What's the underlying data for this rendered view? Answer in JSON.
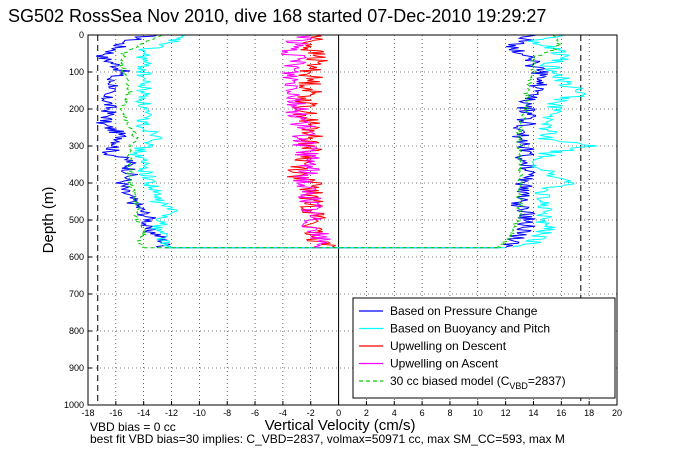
{
  "header": {
    "title": "SG502 RossSea Nov 2010, dive 168 started 07-Dec-2010 19:29:27"
  },
  "footer": {
    "line1": "VBD bias = 0 cc",
    "line2": "best fit VBD bias=30 implies: C_VBD=2837, volmax=50971 cc, max SM_CC=593, max M"
  },
  "chart_data": {
    "type": "line",
    "title": "SG502 RossSea Nov 2010, dive 168 started 07-Dec-2010 19:29:27",
    "xlabel": "Vertical Velocity (cm/s)",
    "ylabel": "Depth (m)",
    "xlim": [
      -18,
      20
    ],
    "ylim": [
      0,
      1000
    ],
    "y_reversed": true,
    "grid": true,
    "xticks": [
      -18,
      -16,
      -14,
      -12,
      -10,
      -8,
      -6,
      -4,
      -2,
      0,
      2,
      4,
      6,
      8,
      10,
      12,
      14,
      16,
      18,
      20
    ],
    "yticks": [
      0,
      100,
      200,
      300,
      400,
      500,
      600,
      700,
      800,
      900,
      1000
    ],
    "legend_position": "bottom-right",
    "reference_lines": [
      {
        "axis": "x",
        "value": -17.3,
        "style": "dashed",
        "color": "#000000"
      },
      {
        "axis": "x",
        "value": 17.4,
        "style": "dashed",
        "color": "#000000"
      },
      {
        "axis": "x",
        "value": 0,
        "style": "solid",
        "color": "#000000"
      }
    ],
    "series": [
      {
        "name": "Based on Pressure Change",
        "color": "#0000ff",
        "style": "solid",
        "descent": {
          "depth": [
            0,
            20,
            40,
            60,
            80,
            100,
            120,
            140,
            160,
            180,
            200,
            220,
            240,
            260,
            280,
            300,
            320,
            340,
            360,
            380,
            400,
            420,
            440,
            460,
            480,
            500,
            520,
            540,
            560,
            575
          ],
          "velocity": [
            -13.5,
            -15.5,
            -16.0,
            -17.0,
            -16.0,
            -15.5,
            -16.5,
            -16.0,
            -17.0,
            -16.5,
            -16.5,
            -16.5,
            -17.0,
            -16.0,
            -15.5,
            -16.0,
            -16.5,
            -15.0,
            -15.0,
            -15.0,
            -15.5,
            -15.5,
            -15.0,
            -14.5,
            -14.0,
            -13.5,
            -14.0,
            -13.0,
            -12.5,
            -12.5
          ]
        },
        "ascent": {
          "depth": [
            575,
            560,
            540,
            520,
            500,
            480,
            460,
            440,
            420,
            400,
            380,
            360,
            340,
            320,
            300,
            280,
            260,
            240,
            220,
            200,
            180,
            160,
            140,
            120,
            100,
            80,
            60,
            40,
            20,
            0
          ],
          "velocity": [
            11.5,
            12.5,
            13.0,
            13.5,
            13.5,
            13.5,
            13.0,
            13.0,
            13.5,
            13.0,
            13.5,
            13.5,
            13.0,
            13.5,
            13.5,
            13.0,
            13.0,
            13.5,
            13.5,
            13.5,
            13.5,
            14.0,
            14.5,
            14.0,
            14.5,
            14.0,
            14.0,
            12.5,
            13.0,
            14.0
          ]
        }
      },
      {
        "name": "Based on Buoyancy and Pitch",
        "color": "#00ffff",
        "style": "solid",
        "descent": {
          "depth": [
            0,
            20,
            40,
            60,
            80,
            100,
            150,
            200,
            250,
            280,
            300,
            320,
            350,
            400,
            450,
            470,
            500,
            520,
            540,
            560,
            575
          ],
          "velocity": [
            -11.5,
            -12.0,
            -14.0,
            -14.0,
            -14.0,
            -14.0,
            -14.0,
            -14.0,
            -14.0,
            -12.5,
            -14.0,
            -14.5,
            -14.0,
            -13.5,
            -13.0,
            -12.0,
            -12.5,
            -13.0,
            -12.5,
            -12.5,
            -12.5
          ]
        },
        "ascent": {
          "depth": [
            575,
            560,
            540,
            520,
            500,
            460,
            420,
            400,
            380,
            350,
            320,
            300,
            280,
            250,
            220,
            200,
            180,
            160,
            120,
            80,
            60,
            40,
            20,
            0
          ],
          "velocity": [
            12.0,
            14.0,
            14.5,
            15.0,
            14.5,
            15.0,
            14.5,
            17.0,
            15.0,
            14.5,
            15.0,
            18.0,
            15.0,
            15.0,
            15.0,
            15.5,
            15.5,
            17.5,
            16.0,
            15.0,
            16.5,
            15.5,
            14.0,
            16.0
          ]
        }
      },
      {
        "name": "Upwelling on Descent",
        "color": "#ff0000",
        "style": "solid",
        "data": {
          "depth": [
            0,
            20,
            40,
            60,
            100,
            150,
            200,
            250,
            300,
            350,
            380,
            400,
            450,
            500,
            520,
            550,
            575
          ],
          "velocity": [
            -1.5,
            -2.0,
            -2.0,
            -1.5,
            -2.0,
            -2.0,
            -2.5,
            -2.0,
            -2.0,
            -2.5,
            -3.0,
            -2.0,
            -2.0,
            -1.5,
            -2.0,
            -2.0,
            0.5
          ]
        }
      },
      {
        "name": "Upwelling on Ascent",
        "color": "#ff00ff",
        "style": "solid",
        "data": {
          "depth": [
            0,
            20,
            40,
            80,
            100,
            150,
            200,
            250,
            300,
            350,
            400,
            450,
            500,
            540,
            575
          ],
          "velocity": [
            -2.0,
            -3.0,
            -3.5,
            -3.0,
            -3.5,
            -3.0,
            -3.0,
            -2.5,
            -2.5,
            -2.0,
            -2.5,
            -2.0,
            -2.0,
            -1.5,
            -1.0
          ]
        }
      },
      {
        "name": "30 cc biased model (C_VBD=2837)",
        "legend_label": "30 cc biased model (C",
        "legend_sub": "VBD",
        "legend_tail": "=2837)",
        "color": "#00cc00",
        "style": "dashed",
        "descent": {
          "depth": [
            0,
            20,
            50,
            80,
            100,
            150,
            200,
            250,
            280,
            300,
            330,
            350,
            400,
            450,
            500,
            520,
            540,
            560,
            575
          ],
          "velocity": [
            -12.5,
            -14.0,
            -15.5,
            -15.5,
            -15.5,
            -15.0,
            -15.5,
            -15.0,
            -14.5,
            -15.0,
            -15.0,
            -15.0,
            -15.0,
            -14.5,
            -14.5,
            -14.0,
            -14.0,
            -14.5,
            -14.0
          ]
        },
        "ascent": {
          "depth": [
            575,
            560,
            540,
            520,
            500,
            450,
            400,
            350,
            300,
            250,
            200,
            150,
            100,
            80,
            60,
            40,
            20,
            0
          ],
          "velocity": [
            11.5,
            12.0,
            12.5,
            12.5,
            13.0,
            13.0,
            13.0,
            13.0,
            13.0,
            13.0,
            13.5,
            13.5,
            14.0,
            14.0,
            14.0,
            15.5,
            16.0,
            15.5
          ]
        }
      }
    ]
  }
}
